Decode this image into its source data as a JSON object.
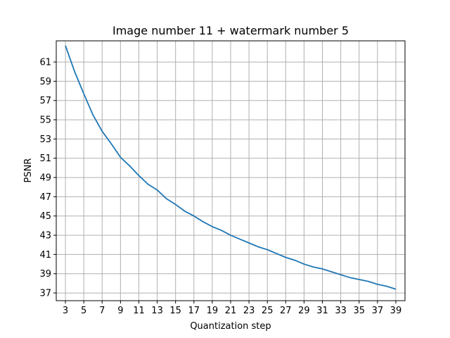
{
  "chart_data": {
    "type": "line",
    "title": "Image number 11 + watermark number 5",
    "xlabel": "Quantization step",
    "ylabel": "PSNR",
    "xlim": [
      2.0,
      40.0
    ],
    "ylim": [
      36.2,
      63.2
    ],
    "xticks": [
      3,
      5,
      7,
      9,
      11,
      13,
      15,
      17,
      19,
      21,
      23,
      25,
      27,
      29,
      31,
      33,
      35,
      37,
      39
    ],
    "yticks": [
      37,
      39,
      41,
      43,
      45,
      47,
      49,
      51,
      53,
      55,
      57,
      59,
      61
    ],
    "grid": true,
    "legend": "none",
    "series": [
      {
        "color": "#1f77b4",
        "x": [
          3,
          4,
          5,
          6,
          7,
          8,
          9,
          10,
          11,
          12,
          13,
          14,
          15,
          16,
          17,
          18,
          19,
          20,
          21,
          22,
          23,
          24,
          25,
          26,
          27,
          28,
          29,
          30,
          31,
          32,
          33,
          34,
          35,
          36,
          37,
          38,
          39
        ],
        "y": [
          62.7,
          60.0,
          57.7,
          55.5,
          53.8,
          52.5,
          51.1,
          50.2,
          49.2,
          48.3,
          47.7,
          46.8,
          46.2,
          45.5,
          45.0,
          44.4,
          43.9,
          43.5,
          43.0,
          42.6,
          42.2,
          41.8,
          41.5,
          41.1,
          40.7,
          40.4,
          40.0,
          39.7,
          39.5,
          39.2,
          38.9,
          38.6,
          38.4,
          38.2,
          37.9,
          37.7,
          37.4
        ]
      }
    ]
  }
}
